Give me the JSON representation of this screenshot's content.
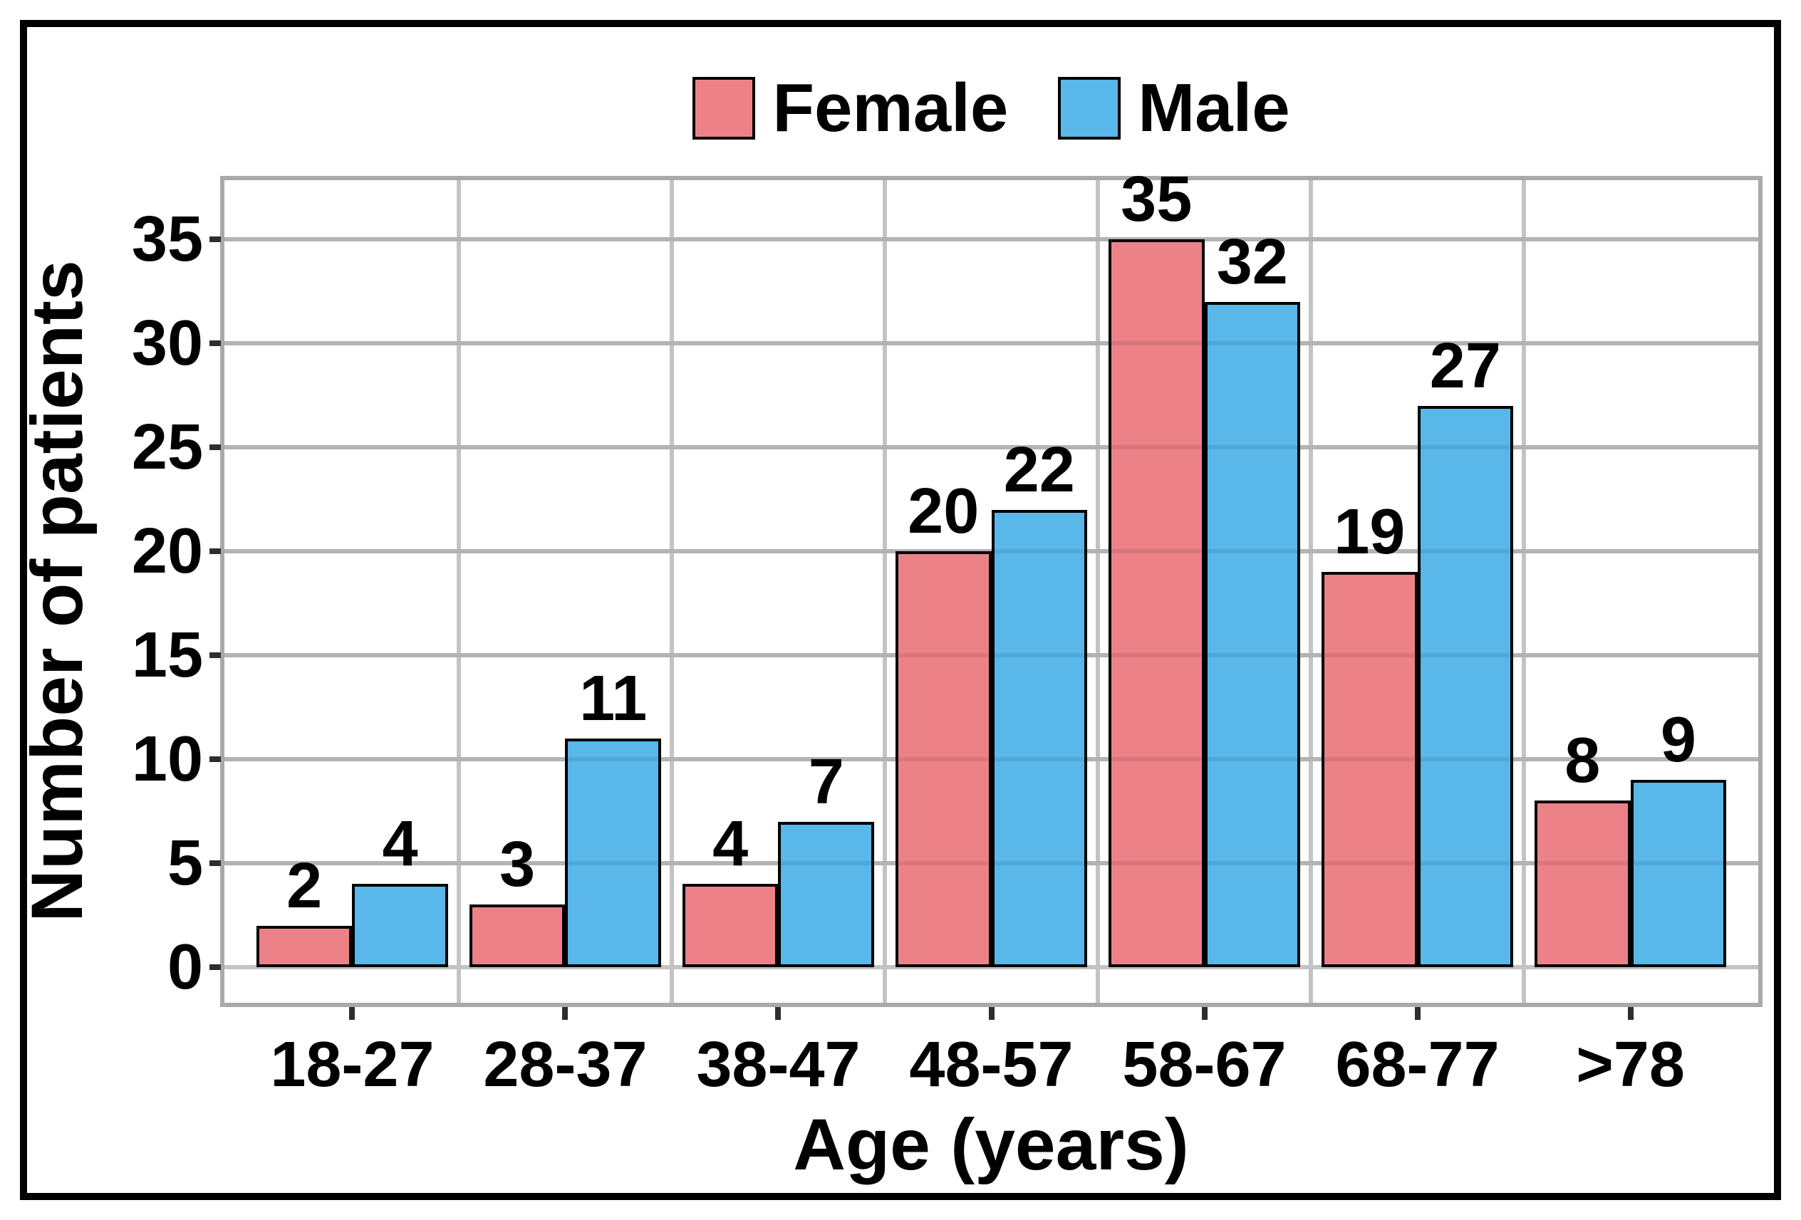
{
  "figure": {
    "background": "#FFFFFF",
    "frame_color": "#000000"
  },
  "chart_data": {
    "type": "bar",
    "categories": [
      "18-27",
      "28-37",
      "38-47",
      "48-57",
      "58-67",
      "68-77",
      ">78"
    ],
    "series": [
      {
        "name": "Female",
        "color": "#EC8288",
        "values": [
          2,
          3,
          4,
          20,
          35,
          19,
          8
        ]
      },
      {
        "name": "Male",
        "color": "#59B7EA",
        "values": [
          4,
          11,
          7,
          22,
          32,
          27,
          9
        ]
      }
    ],
    "xlabel": "Age (years)",
    "ylabel": "Number of patients",
    "yticks": [
      0,
      5,
      10,
      15,
      20,
      25,
      30,
      35
    ],
    "ylim": [
      -1.71,
      37.84
    ],
    "bar_value_labels": true,
    "legend_position": "top",
    "grid": {
      "gridline_color": "#C3C3C3",
      "panel_border_color": "#A9A9A9",
      "tick_color": "#2E2E2E"
    }
  }
}
